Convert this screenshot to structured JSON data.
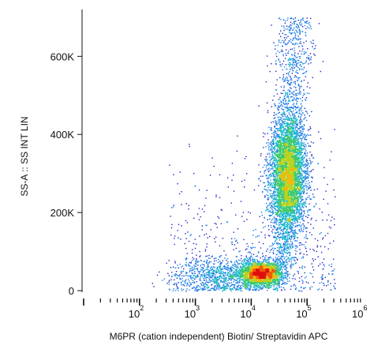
{
  "chart_data": {
    "type": "scatter",
    "subtype": "flow-cytometry density dot plot",
    "title": "",
    "xlabel": "M6PR (cation independent) Biotin/ Streptavidin APC",
    "ylabel": "SS-A :: SS INT LIN",
    "x_scale": "log",
    "xlim": [
      10,
      1000000
    ],
    "ylim": [
      0,
      720000
    ],
    "y_ticks": [
      {
        "value": 0,
        "label": "0"
      },
      {
        "value": 200000,
        "label": "200K"
      },
      {
        "value": 400000,
        "label": "400K"
      },
      {
        "value": 600000,
        "label": "600K"
      }
    ],
    "x_ticks": [
      {
        "value": 100,
        "base": "10",
        "exp": "2"
      },
      {
        "value": 1000,
        "base": "10",
        "exp": "3"
      },
      {
        "value": 10000,
        "base": "10",
        "exp": "4"
      },
      {
        "value": 100000,
        "base": "10",
        "exp": "5"
      },
      {
        "value": 1000000,
        "base": "10",
        "exp": "6"
      }
    ],
    "grid": false,
    "density_colormap": [
      "#1f22c8",
      "#1b7ee6",
      "#19b8c8",
      "#3ac86a",
      "#b8d21e",
      "#f0b810",
      "#f05a0a",
      "#e01010"
    ],
    "populations": [
      {
        "x_center": 15000,
        "y_center": 45000,
        "x_spread_log": 0.18,
        "y_spread": 15000,
        "count": 2600,
        "peak_density": "high"
      },
      {
        "x_center": 45000,
        "y_center": 300000,
        "x_spread_log": 0.16,
        "y_spread": 75000,
        "count": 4500,
        "peak_density": "medium-high"
      },
      {
        "x_center": 3500,
        "y_center": 40000,
        "x_spread_log": 0.45,
        "y_spread": 25000,
        "count": 900,
        "peak_density": "low"
      }
    ]
  }
}
